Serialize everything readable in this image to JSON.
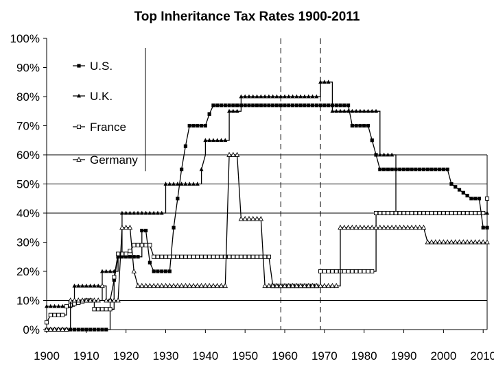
{
  "chart_data": {
    "type": "line",
    "title": "Top Inheritance Tax Rates 1900-2011",
    "xlabel": "",
    "ylabel": "",
    "xlim": [
      1900,
      2011
    ],
    "ylim": [
      0,
      100
    ],
    "x_ticks": [
      1900,
      1910,
      1920,
      1930,
      1940,
      1950,
      1960,
      1970,
      1980,
      1990,
      2000,
      2010
    ],
    "x_tick_labels": [
      "1900",
      "1910",
      "1920",
      "1930",
      "1940",
      "1950",
      "1960",
      "1970",
      "1980",
      "1990",
      "2000",
      "2010"
    ],
    "y_ticks": [
      0,
      10,
      20,
      30,
      40,
      50,
      60,
      70,
      80,
      90,
      100
    ],
    "y_tick_labels": [
      "0%",
      "10%",
      "20%",
      "30%",
      "40%",
      "50%",
      "60%",
      "70%",
      "80%",
      "90%",
      "100%"
    ],
    "grid": "horizontal gridlines at 10%, 40%, 50%, 60%",
    "reference_lines": [
      1959,
      1969
    ],
    "legend_position": "top-left",
    "series": [
      {
        "name": "U.S.",
        "marker": "filled-square",
        "points": [
          [
            1900,
            0
          ],
          [
            1916,
            0
          ],
          [
            1916,
            10
          ],
          [
            1917,
            17
          ],
          [
            1918,
            25
          ],
          [
            1924,
            25
          ],
          [
            1924,
            34
          ],
          [
            1925,
            34
          ],
          [
            1926,
            23
          ],
          [
            1927,
            20
          ],
          [
            1931,
            20
          ],
          [
            1932,
            35
          ],
          [
            1933,
            45
          ],
          [
            1934,
            55
          ],
          [
            1935,
            63
          ],
          [
            1936,
            70
          ],
          [
            1940,
            70
          ],
          [
            1941,
            74
          ],
          [
            1942,
            77
          ],
          [
            1976,
            77
          ],
          [
            1977,
            70
          ],
          [
            1981,
            70
          ],
          [
            1982,
            65
          ],
          [
            1983,
            60
          ],
          [
            1984,
            55
          ],
          [
            2001,
            55
          ],
          [
            2002,
            50
          ],
          [
            2003,
            49
          ],
          [
            2004,
            48
          ],
          [
            2005,
            47
          ],
          [
            2006,
            46
          ],
          [
            2007,
            45
          ],
          [
            2009,
            45
          ],
          [
            2010,
            35
          ],
          [
            2011,
            35
          ]
        ]
      },
      {
        "name": "U.K.",
        "marker": "filled-triangle",
        "points": [
          [
            1900,
            8
          ],
          [
            1907,
            8
          ],
          [
            1907,
            15
          ],
          [
            1914,
            15
          ],
          [
            1914,
            20
          ],
          [
            1918,
            20
          ],
          [
            1918,
            25
          ],
          [
            1919,
            25
          ],
          [
            1919,
            40
          ],
          [
            1930,
            40
          ],
          [
            1930,
            50
          ],
          [
            1939,
            50
          ],
          [
            1939,
            55
          ],
          [
            1940,
            60
          ],
          [
            1940,
            65
          ],
          [
            1946,
            65
          ],
          [
            1946,
            75
          ],
          [
            1949,
            75
          ],
          [
            1949,
            80
          ],
          [
            1969,
            80
          ],
          [
            1969,
            85
          ],
          [
            1972,
            85
          ],
          [
            1972,
            75
          ],
          [
            1984,
            75
          ],
          [
            1984,
            60
          ],
          [
            1988,
            60
          ],
          [
            1988,
            40
          ],
          [
            2011,
            40
          ]
        ]
      },
      {
        "name": "France",
        "marker": "open-square",
        "points": [
          [
            1900,
            2.5
          ],
          [
            1901,
            5
          ],
          [
            1905,
            5
          ],
          [
            1905,
            8
          ],
          [
            1910,
            10
          ],
          [
            1912,
            10
          ],
          [
            1912,
            7
          ],
          [
            1917,
            7
          ],
          [
            1917,
            18
          ],
          [
            1918,
            26
          ],
          [
            1920,
            26
          ],
          [
            1921,
            27
          ],
          [
            1922,
            29
          ],
          [
            1926,
            29
          ],
          [
            1927,
            25
          ],
          [
            1956,
            25
          ],
          [
            1957,
            15
          ],
          [
            1969,
            15
          ],
          [
            1969,
            20
          ],
          [
            1983,
            20
          ],
          [
            1983,
            40
          ],
          [
            2011,
            40
          ],
          [
            2011,
            45
          ]
        ]
      },
      {
        "name": "Germany",
        "marker": "open-triangle",
        "points": [
          [
            1900,
            0
          ],
          [
            1906,
            0
          ],
          [
            1906,
            10
          ],
          [
            1914,
            10
          ],
          [
            1914,
            15
          ],
          [
            1915,
            15
          ],
          [
            1915,
            10
          ],
          [
            1918,
            10
          ],
          [
            1919,
            35
          ],
          [
            1921,
            35
          ],
          [
            1922,
            20
          ],
          [
            1923,
            15
          ],
          [
            1945,
            15
          ],
          [
            1946,
            60
          ],
          [
            1948,
            60
          ],
          [
            1949,
            38
          ],
          [
            1954,
            38
          ],
          [
            1955,
            15
          ],
          [
            1974,
            15
          ],
          [
            1974,
            35
          ],
          [
            1995,
            35
          ],
          [
            1996,
            30
          ],
          [
            2011,
            30
          ]
        ]
      }
    ]
  }
}
